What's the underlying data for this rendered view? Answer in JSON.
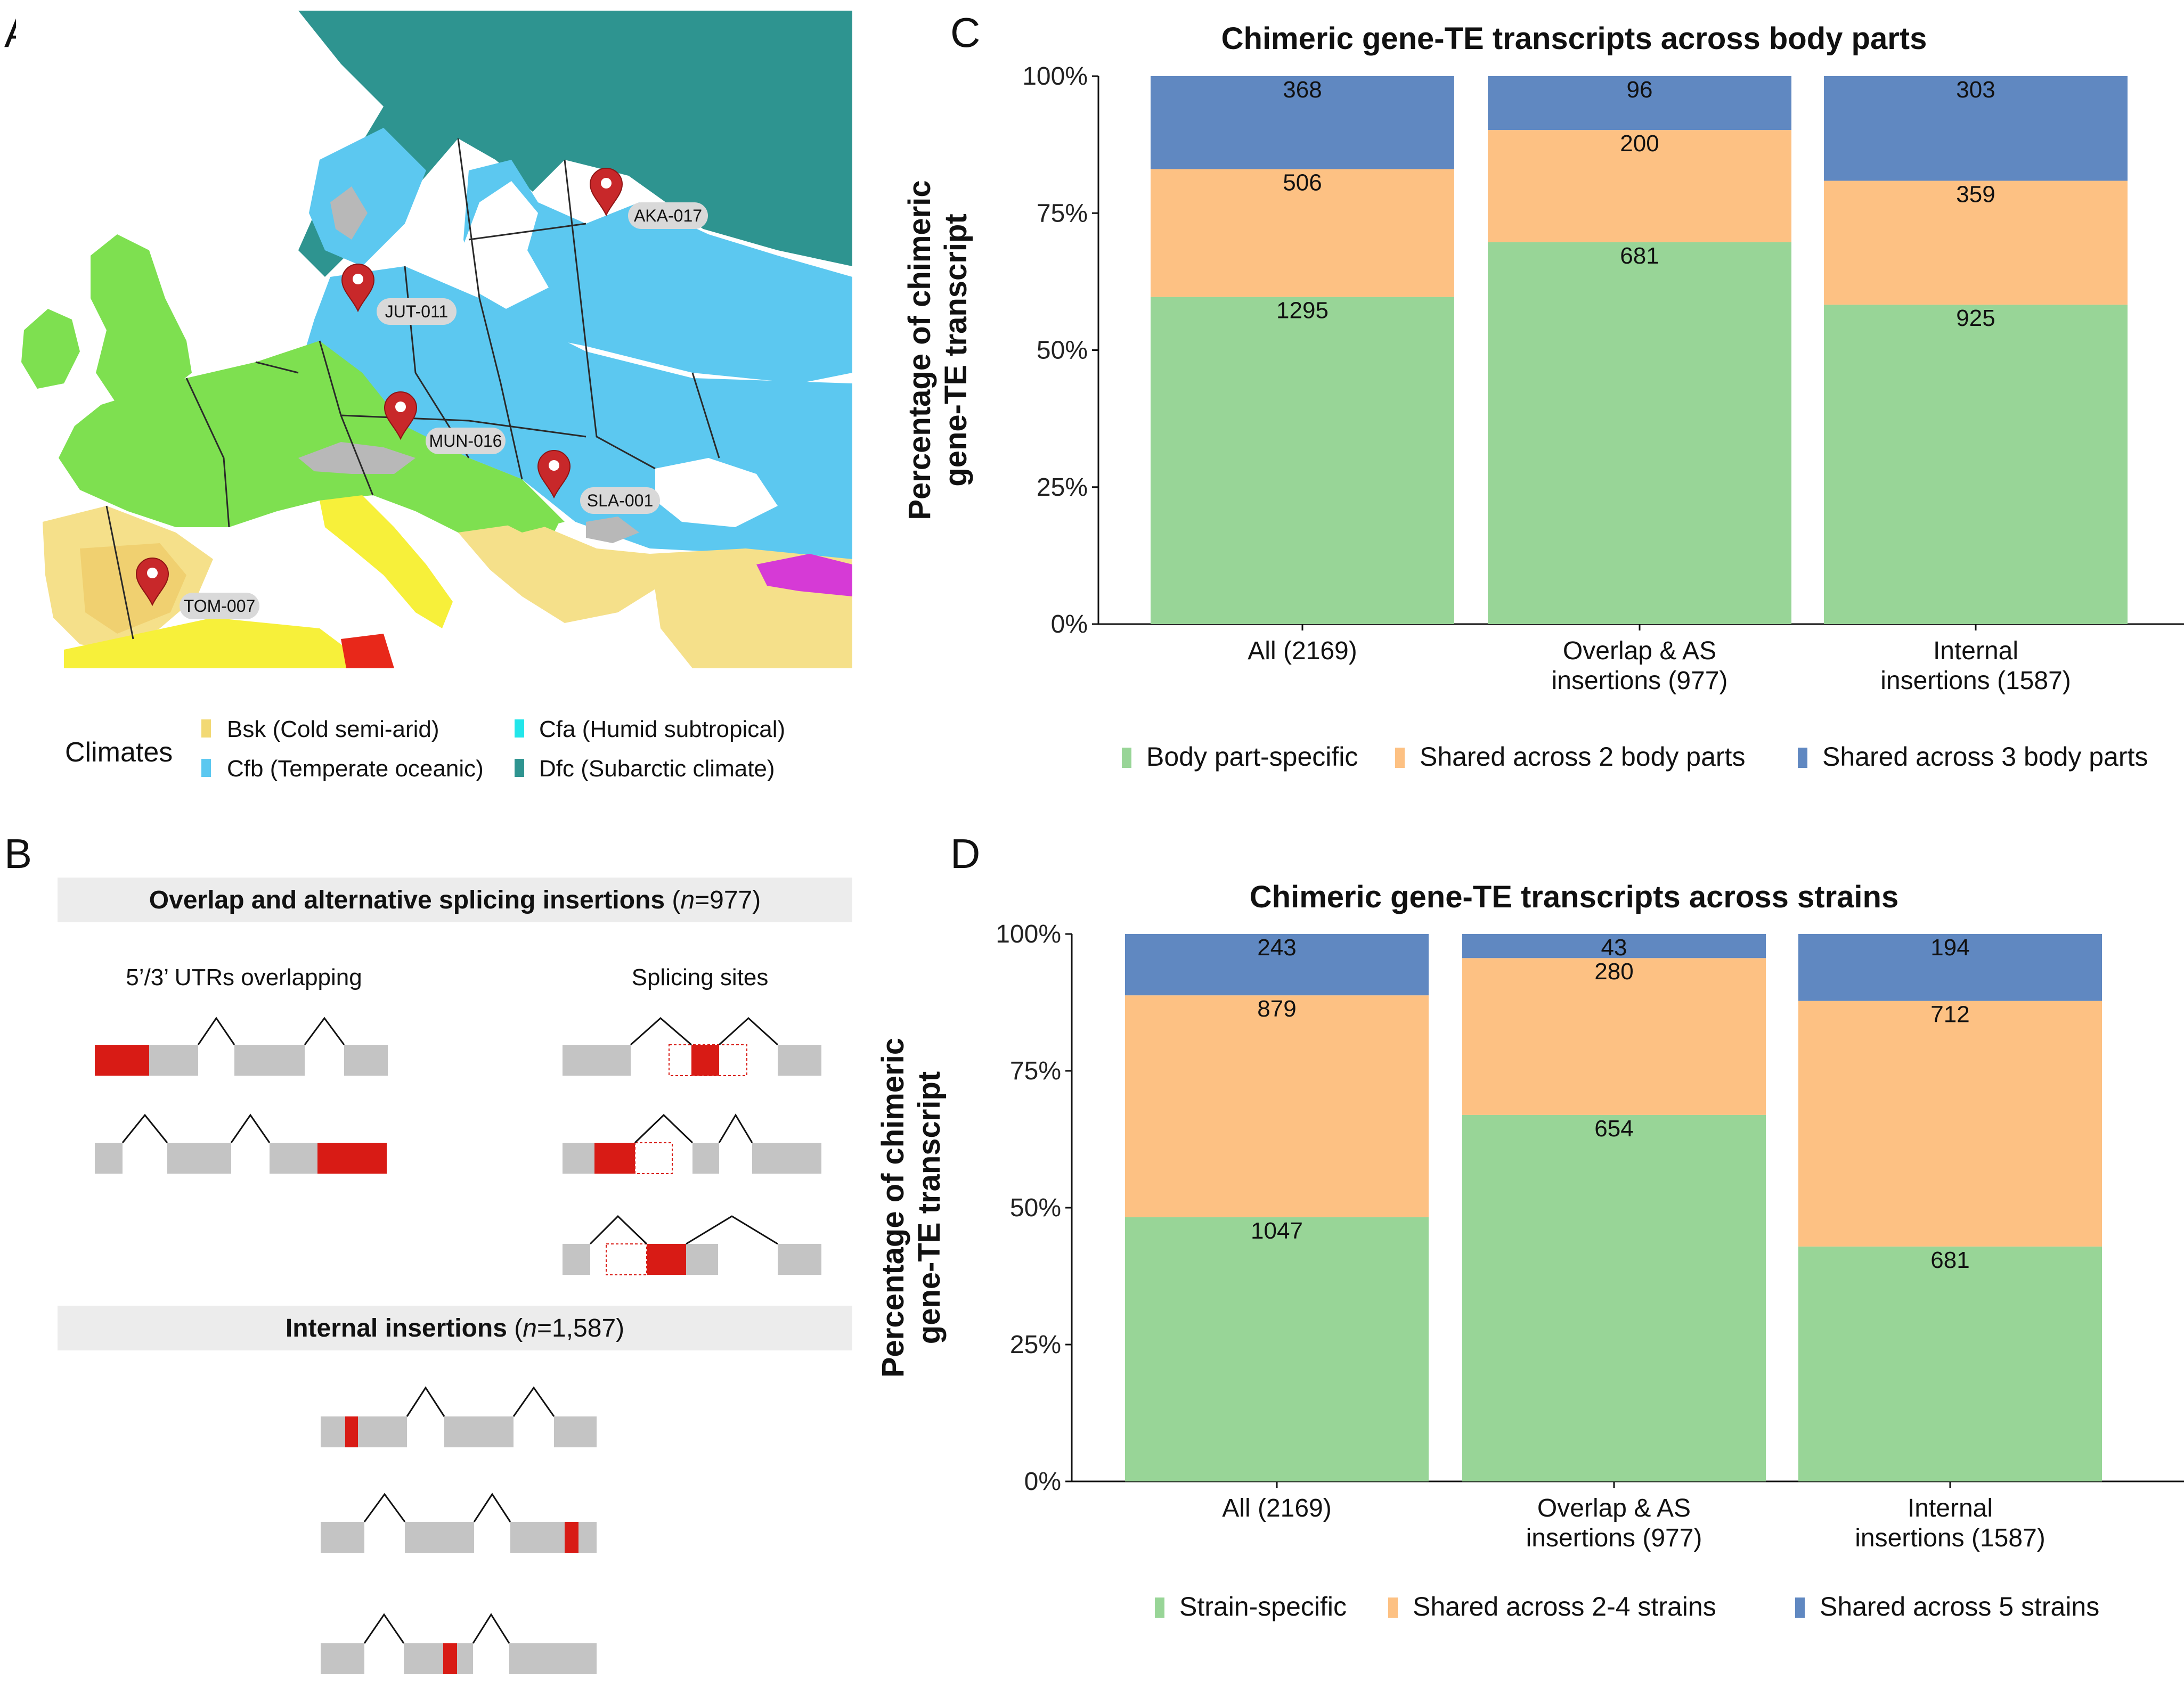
{
  "panels": {
    "a": {
      "letter": "A",
      "pins": [
        {
          "label": "AKA-017"
        },
        {
          "label": "JUT-011"
        },
        {
          "label": "MUN-016"
        },
        {
          "label": "SLA-001"
        },
        {
          "label": "TOM-007"
        }
      ],
      "climates_title": "Climates",
      "climates": [
        {
          "label": "Bsk (Cold semi-arid)",
          "color": "#f2d974"
        },
        {
          "label": "Cfa (Humid subtropical)",
          "color": "#22e6ea"
        },
        {
          "label": "Cfb (Temperate oceanic)",
          "color": "#5cc8f0"
        },
        {
          "label": "Dfc (Subarctic climate)",
          "color": "#2e9490"
        }
      ]
    },
    "b": {
      "letter": "B",
      "header1_main": "Overlap and alternative splicing insertions",
      "header1_n": "n",
      "header1_rest": "=977)",
      "header1_open": "(",
      "col1_title": "5’/3’ UTRs overlapping",
      "col2_title": "Splicing sites",
      "header2_main": "Internal insertions",
      "header2_open": "(",
      "header2_n": "n",
      "header2_rest": "=1,587)"
    },
    "c": {
      "letter": "C"
    },
    "d": {
      "letter": "D"
    }
  },
  "colors": {
    "green": "#98d597",
    "orange": "#fdc183",
    "blue": "#6088c1",
    "exon": "#c4c4c4",
    "te": "#d81b15"
  },
  "chart_data": [
    {
      "type": "bar",
      "stacked": "percent",
      "title": "Chimeric gene-TE transcripts across body parts",
      "ylabel": "Percentage of chimeric gene-TE transcript",
      "xlabel": "",
      "ylim": [
        0,
        100
      ],
      "yticks": [
        "0%",
        "25%",
        "50%",
        "75%",
        "100%"
      ],
      "categories": [
        "All (2169)",
        "Overlap & AS insertions (977)",
        "Internal insertions (1587)"
      ],
      "category_lines": [
        [
          "All (2169)"
        ],
        [
          "Overlap & AS",
          "insertions (977)"
        ],
        [
          "Internal",
          "insertions (1587)"
        ]
      ],
      "series": [
        {
          "name": "Body part-specific",
          "values": [
            1295,
            681,
            925
          ],
          "color": "#98d597"
        },
        {
          "name": "Shared across 2 body parts",
          "values": [
            506,
            200,
            359
          ],
          "color": "#fdc183"
        },
        {
          "name": "Shared across 3 body parts",
          "values": [
            368,
            96,
            303
          ],
          "color": "#6088c1"
        }
      ],
      "legend": "bottom"
    },
    {
      "type": "bar",
      "stacked": "percent",
      "title": "Chimeric gene-TE transcripts across strains",
      "ylabel": "Percentage of chimeric gene-TE transcript",
      "xlabel": "",
      "ylim": [
        0,
        100
      ],
      "yticks": [
        "0%",
        "25%",
        "50%",
        "75%",
        "100%"
      ],
      "categories": [
        "All (2169)",
        "Overlap & AS insertions (977)",
        "Internal insertions (1587)"
      ],
      "category_lines": [
        [
          "All (2169)"
        ],
        [
          "Overlap & AS",
          "insertions (977)"
        ],
        [
          "Internal",
          "insertions (1587)"
        ]
      ],
      "series": [
        {
          "name": "Strain-specific",
          "values": [
            1047,
            654,
            681
          ],
          "color": "#98d597"
        },
        {
          "name": "Shared across 2-4 strains",
          "values": [
            879,
            280,
            712
          ],
          "color": "#fdc183"
        },
        {
          "name": "Shared across 5 strains",
          "values": [
            243,
            43,
            194
          ],
          "color": "#6088c1"
        }
      ],
      "legend": "bottom"
    }
  ]
}
